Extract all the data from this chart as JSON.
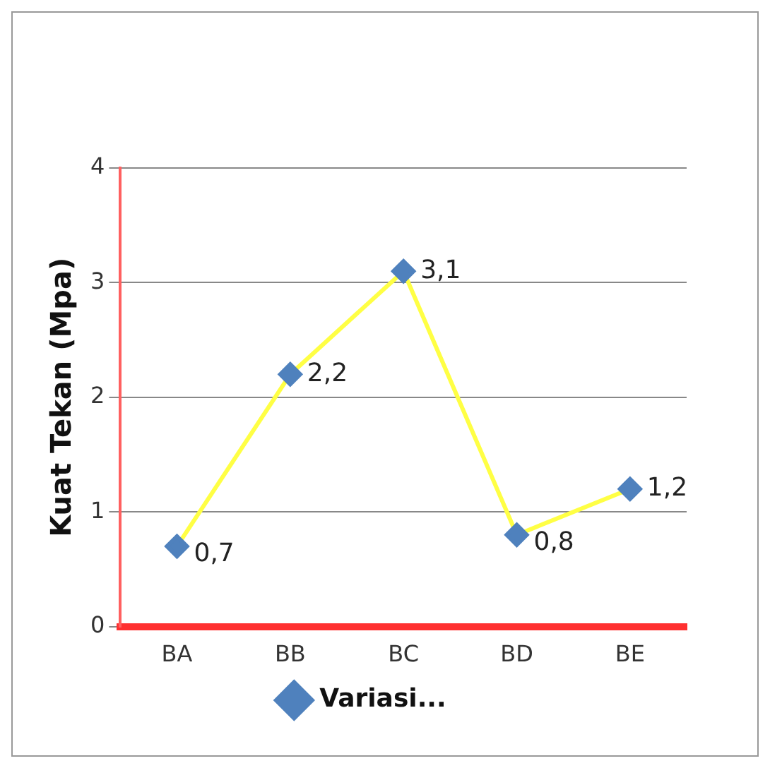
{
  "chart_data": {
    "type": "line",
    "ylabel": "Kuat Tekan (Mpa)",
    "categories": [
      "BA",
      "BB",
      "BC",
      "BD",
      "BE"
    ],
    "series": [
      {
        "name": "Variasi...",
        "color": "#ffff44",
        "values": [
          0.7,
          2.2,
          3.1,
          0.8,
          1.2
        ],
        "value_labels": [
          "0,7",
          "2,2",
          "3,1",
          "0,8",
          "1,2"
        ]
      }
    ],
    "ylim": [
      0,
      4
    ],
    "yticks": [
      0,
      1,
      2,
      3,
      4
    ],
    "grid": "y",
    "legend": "bottom",
    "marker": "diamond",
    "line_style": "solid"
  }
}
